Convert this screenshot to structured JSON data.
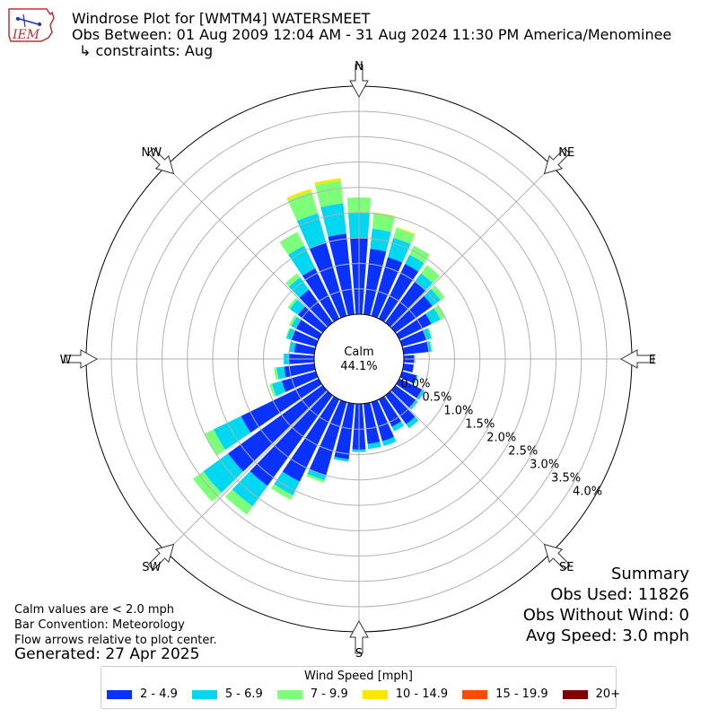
{
  "header": {
    "logo_text": "IEM",
    "title_line1": "Windrose Plot for [WMTM4] WATERSMEET",
    "title_line2": "Obs Between: 01 Aug 2009 12:04 AM - 31 Aug 2024 11:30 PM America/Menominee",
    "title_line3": "↳ constraints: Aug"
  },
  "footer": {
    "note1": "Calm values are < 2.0 mph",
    "note2": "Bar Convention: Meteorology",
    "note3": "Flow arrows relative to plot center.",
    "generated": "Generated: 27 Apr 2025"
  },
  "summary": {
    "title": "Summary",
    "obs_used": "Obs Used: 11826",
    "obs_without_wind": "Obs Without Wind: 0",
    "avg_speed": "Avg Speed: 3.0 mph"
  },
  "legend": {
    "title": "Wind Speed [mph]",
    "items": [
      {
        "label": "2 - 4.9",
        "color": "#0a32ff"
      },
      {
        "label": "5 - 6.9",
        "color": "#00d7f0"
      },
      {
        "label": "7 - 9.9",
        "color": "#7dff7a"
      },
      {
        "label": "10 - 14.9",
        "color": "#ffe600"
      },
      {
        "label": "15 - 19.9",
        "color": "#ff4a00"
      },
      {
        "label": "20+",
        "color": "#800000"
      }
    ]
  },
  "chart_data": {
    "type": "windrose",
    "calm_label": "Calm",
    "calm_value": "44.1%",
    "compass_labels": [
      "N",
      "NE",
      "E",
      "SE",
      "S",
      "SW",
      "W",
      "NW"
    ],
    "radial_tick_labels": [
      "0.0%",
      "0.5%",
      "1.0%",
      "1.5%",
      "2.0%",
      "2.5%",
      "3.0%",
      "3.5%",
      "4.0%"
    ],
    "radial_max_percent": 4.0,
    "direction_bins_deg_from": [
      0,
      10,
      20,
      30,
      40,
      50,
      60,
      70,
      80,
      90,
      100,
      110,
      120,
      130,
      140,
      150,
      160,
      170,
      180,
      190,
      200,
      210,
      220,
      230,
      240,
      250,
      260,
      270,
      280,
      290,
      300,
      310,
      320,
      330,
      340,
      350
    ],
    "series": [
      {
        "name": "2 - 4.9",
        "color": "#0a32ff",
        "values": [
          1.5,
          1.3,
          1.2,
          1.2,
          1.0,
          0.9,
          0.7,
          0.5,
          0.5,
          0.2,
          0.2,
          0.3,
          0.5,
          0.5,
          0.7,
          0.6,
          0.8,
          0.8,
          0.9,
          1.1,
          1.5,
          1.8,
          2.2,
          2.3,
          1.7,
          0.7,
          0.6,
          0.5,
          0.4,
          0.5,
          0.5,
          0.6,
          0.8,
          1.1,
          1.5,
          1.6
        ]
      },
      {
        "name": "5 - 6.9",
        "color": "#00d7f0",
        "values": [
          0.5,
          0.4,
          0.4,
          0.2,
          0.2,
          0.2,
          0.2,
          0.1,
          0.05,
          0.02,
          0.0,
          0.02,
          0.05,
          0.05,
          0.1,
          0.1,
          0.1,
          0.1,
          0.05,
          0.05,
          0.1,
          0.3,
          0.5,
          0.6,
          0.6,
          0.2,
          0.15,
          0.1,
          0.1,
          0.1,
          0.1,
          0.2,
          0.3,
          0.5,
          0.6,
          0.6
        ]
      },
      {
        "name": "7 - 9.9",
        "color": "#7dff7a",
        "values": [
          0.3,
          0.3,
          0.2,
          0.2,
          0.2,
          0.1,
          0.1,
          0.02,
          0.02,
          0.0,
          0.0,
          0.0,
          0.0,
          0.0,
          0.0,
          0.0,
          0.0,
          0.0,
          0.0,
          0.0,
          0.05,
          0.1,
          0.2,
          0.25,
          0.2,
          0.05,
          0.05,
          0.0,
          0.0,
          0.02,
          0.05,
          0.05,
          0.1,
          0.3,
          0.45,
          0.45
        ]
      },
      {
        "name": "10 - 14.9",
        "color": "#ffe600",
        "values": [
          0.0,
          0.02,
          0.02,
          0.0,
          0.0,
          0.0,
          0.0,
          0.0,
          0.0,
          0.0,
          0.0,
          0.0,
          0.0,
          0.0,
          0.0,
          0.0,
          0.0,
          0.0,
          0.0,
          0.0,
          0.0,
          0.0,
          0.0,
          0.0,
          0.0,
          0.0,
          0.0,
          0.0,
          0.0,
          0.0,
          0.0,
          0.0,
          0.0,
          0.0,
          0.05,
          0.05
        ]
      },
      {
        "name": "15 - 19.9",
        "color": "#ff4a00",
        "values": [
          0.0,
          0.0,
          0.0,
          0.0,
          0.0,
          0.0,
          0.0,
          0.0,
          0.0,
          0.0,
          0.0,
          0.0,
          0.0,
          0.0,
          0.0,
          0.0,
          0.0,
          0.0,
          0.0,
          0.0,
          0.0,
          0.0,
          0.0,
          0.0,
          0.0,
          0.0,
          0.0,
          0.0,
          0.0,
          0.0,
          0.0,
          0.0,
          0.0,
          0.0,
          0.0,
          0.0
        ]
      },
      {
        "name": "20+",
        "color": "#800000",
        "values": [
          0.0,
          0.0,
          0.0,
          0.0,
          0.0,
          0.0,
          0.0,
          0.0,
          0.0,
          0.0,
          0.0,
          0.0,
          0.0,
          0.0,
          0.0,
          0.0,
          0.0,
          0.0,
          0.0,
          0.0,
          0.0,
          0.0,
          0.0,
          0.0,
          0.0,
          0.0,
          0.0,
          0.0,
          0.0,
          0.0,
          0.0,
          0.0,
          0.0,
          0.0,
          0.0,
          0.0
        ]
      }
    ],
    "grid": true
  }
}
